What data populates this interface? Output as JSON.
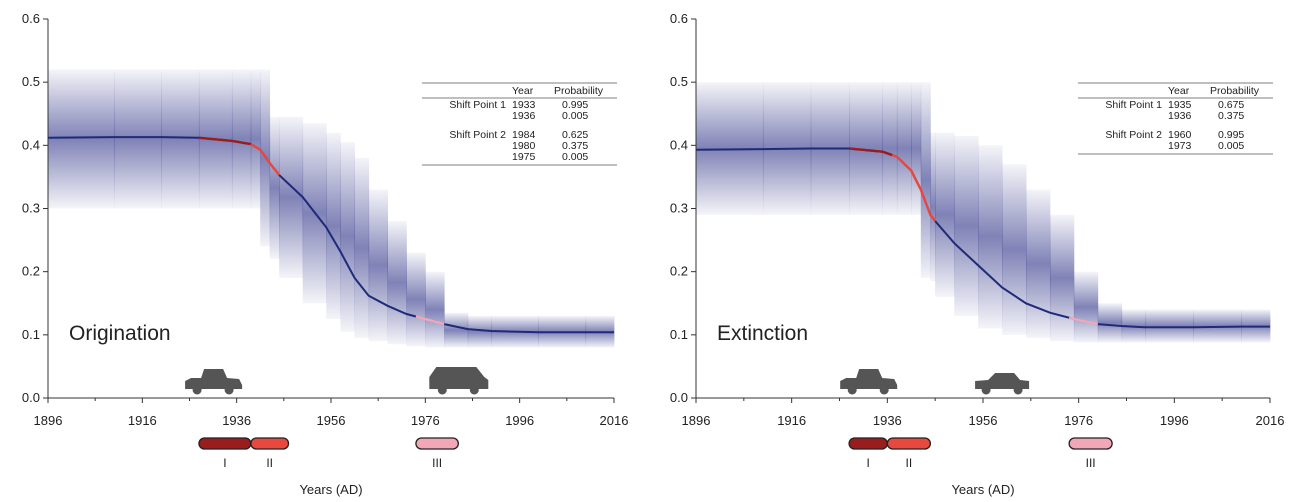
{
  "chart_data": [
    {
      "type": "line",
      "panel_label": "Origination",
      "xlabel": "Years (AD)",
      "xlim": [
        1896,
        2016
      ],
      "ylim": [
        0,
        0.6
      ],
      "x_ticks": [
        "1896",
        "1916",
        "1936",
        "1956",
        "1976",
        "1996",
        "2016"
      ],
      "y_ticks": [
        "0.0",
        "0.1",
        "0.2",
        "0.3",
        "0.4",
        "0.5",
        "0.6"
      ],
      "grid": false,
      "series": [
        {
          "x": [
            1896,
            1910,
            1920,
            1928,
            1935,
            1939,
            1941,
            1943,
            1945,
            1950,
            1955,
            1958,
            1961,
            1964,
            1968,
            1972,
            1976,
            1980,
            1985,
            1990,
            2000,
            2010,
            2016
          ],
          "y": [
            0.412,
            0.413,
            0.413,
            0.412,
            0.407,
            0.402,
            0.393,
            0.372,
            0.353,
            0.318,
            0.27,
            0.232,
            0.19,
            0.162,
            0.146,
            0.133,
            0.125,
            0.117,
            0.109,
            0.106,
            0.104,
            0.104,
            0.104
          ],
          "band_upper": [
            0.52,
            0.52,
            0.52,
            0.52,
            0.52,
            0.52,
            0.52,
            0.445,
            0.445,
            0.435,
            0.42,
            0.405,
            0.38,
            0.33,
            0.28,
            0.23,
            0.2,
            0.135,
            0.13,
            0.13,
            0.13,
            0.13,
            0.13
          ],
          "band_lower": [
            0.3,
            0.3,
            0.3,
            0.3,
            0.3,
            0.3,
            0.3,
            0.24,
            0.22,
            0.19,
            0.15,
            0.125,
            0.105,
            0.095,
            0.09,
            0.085,
            0.082,
            0.08,
            0.08,
            0.08,
            0.08,
            0.08,
            0.08
          ]
        }
      ],
      "highlights": [
        {
          "x_start": 1928,
          "x_end": 1939,
          "color": "#9b1c1c"
        },
        {
          "x_start": 1939,
          "x_end": 1945,
          "color": "#e8483d"
        },
        {
          "x_start": 1974,
          "x_end": 1980,
          "color": "#f2a7b8"
        }
      ],
      "table": {
        "headers": [
          "",
          "Year",
          "Probability"
        ],
        "rows": [
          [
            "Shift Point 1",
            "1933",
            "0.995"
          ],
          [
            "",
            "1936",
            "0.005"
          ],
          [
            "Shift Point 2",
            "1984",
            "0.625"
          ],
          [
            "",
            "1980",
            "0.375"
          ],
          [
            "",
            "1975",
            "0.005"
          ]
        ]
      },
      "periods": [
        {
          "label": "I",
          "start": 1928,
          "end": 1939,
          "color": "#9b1c1c"
        },
        {
          "label": "II",
          "start": 1939,
          "end": 1947,
          "color": "#e8483d"
        },
        {
          "label": "III",
          "start": 1974,
          "end": 1983,
          "color": "#f2a7b8"
        }
      ],
      "icons": [
        {
          "name": "vintage-car-icon",
          "x": 1931
        },
        {
          "name": "suv-icon",
          "x": 1983
        }
      ]
    },
    {
      "type": "line",
      "panel_label": "Extinction",
      "xlabel": "Years (AD)",
      "xlim": [
        1896,
        2016
      ],
      "ylim": [
        0,
        0.6
      ],
      "x_ticks": [
        "1896",
        "1916",
        "1936",
        "1956",
        "1976",
        "1996",
        "2016"
      ],
      "y_ticks": [
        "0.0",
        "0.1",
        "0.2",
        "0.3",
        "0.4",
        "0.5",
        "0.6"
      ],
      "grid": false,
      "series": [
        {
          "x": [
            1896,
            1910,
            1920,
            1928,
            1935,
            1938,
            1941,
            1943,
            1945,
            1946,
            1950,
            1955,
            1960,
            1965,
            1970,
            1975,
            1980,
            1985,
            1990,
            2000,
            2010,
            2016
          ],
          "y": [
            0.393,
            0.394,
            0.395,
            0.395,
            0.39,
            0.382,
            0.36,
            0.33,
            0.29,
            0.28,
            0.245,
            0.21,
            0.175,
            0.15,
            0.135,
            0.125,
            0.117,
            0.114,
            0.112,
            0.112,
            0.113,
            0.113
          ],
          "band_upper": [
            0.5,
            0.5,
            0.5,
            0.5,
            0.5,
            0.5,
            0.5,
            0.5,
            0.42,
            0.42,
            0.415,
            0.4,
            0.37,
            0.33,
            0.29,
            0.2,
            0.15,
            0.14,
            0.14,
            0.14,
            0.14,
            0.14
          ],
          "band_lower": [
            0.29,
            0.29,
            0.29,
            0.29,
            0.29,
            0.29,
            0.29,
            0.29,
            0.19,
            0.185,
            0.16,
            0.13,
            0.11,
            0.1,
            0.095,
            0.09,
            0.088,
            0.088,
            0.088,
            0.088,
            0.088,
            0.088
          ]
        }
      ],
      "highlights": [
        {
          "x_start": 1928,
          "x_end": 1937,
          "color": "#9b1c1c"
        },
        {
          "x_start": 1937,
          "x_end": 1946,
          "color": "#e8483d"
        },
        {
          "x_start": 1974,
          "x_end": 1980,
          "color": "#f2a7b8"
        }
      ],
      "table": {
        "headers": [
          "",
          "Year",
          "Probability"
        ],
        "rows": [
          [
            "Shift Point 1",
            "1935",
            "0.675"
          ],
          [
            "",
            "1936",
            "0.375"
          ],
          [
            "Shift Point 2",
            "1960",
            "0.995"
          ],
          [
            "",
            "1973",
            "0.005"
          ]
        ]
      },
      "periods": [
        {
          "label": "I",
          "start": 1928,
          "end": 1936,
          "color": "#9b1c1c"
        },
        {
          "label": "II",
          "start": 1936,
          "end": 1945,
          "color": "#e8483d"
        },
        {
          "label": "III",
          "start": 1974,
          "end": 1983,
          "color": "#f2a7b8"
        }
      ],
      "icons": [
        {
          "name": "vintage-car-icon",
          "x": 1932
        },
        {
          "name": "sedan-icon",
          "x": 1960
        }
      ]
    }
  ]
}
